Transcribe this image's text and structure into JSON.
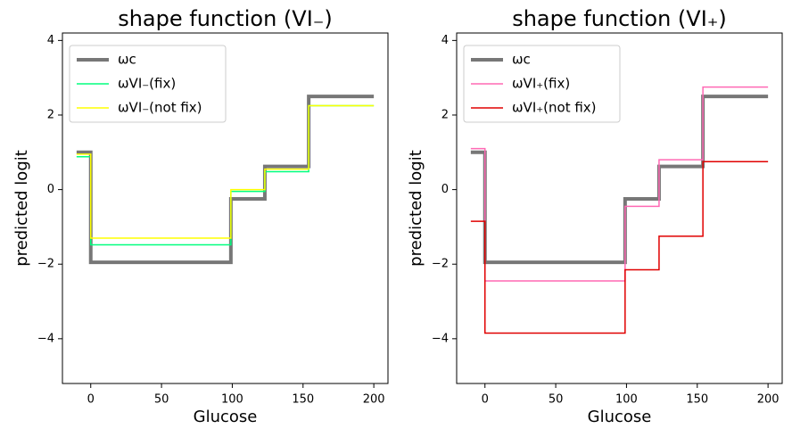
{
  "chart_data": [
    {
      "type": "step",
      "title": "shape function (VI₋)",
      "xlabel": "Glucose",
      "ylabel": "predicted logit",
      "x": [
        -10,
        0,
        99,
        123,
        154,
        200
      ],
      "series": [
        {
          "name": "ωc",
          "color": "#777777",
          "width": 4,
          "values": [
            1.0,
            -1.95,
            -0.25,
            0.62,
            2.5,
            2.5
          ]
        },
        {
          "name": "ωVI₋(fix)",
          "color": "#00ff7f",
          "width": 1.5,
          "values": [
            0.88,
            -1.48,
            -0.05,
            0.48,
            2.25,
            2.25
          ]
        },
        {
          "name": "ωVI₋(not fix)",
          "color": "#ffff00",
          "width": 1.5,
          "values": [
            0.95,
            -1.3,
            0.0,
            0.55,
            2.25,
            2.25
          ]
        }
      ],
      "xlim": [
        -20,
        210
      ],
      "xticks": [
        0,
        50,
        100,
        150,
        200
      ],
      "ylim": [
        -5.2,
        4.2
      ],
      "yticks": [
        {
          "value": -4,
          "label": "−4"
        },
        {
          "value": -2,
          "label": "−2"
        },
        0,
        2,
        4
      ],
      "legend": "upper left"
    },
    {
      "type": "step",
      "title": "shape function (VI₊)",
      "xlabel": "Glucose",
      "ylabel": "predicted logit",
      "x": [
        -10,
        0,
        99,
        123,
        154,
        200
      ],
      "series": [
        {
          "name": "ωc",
          "color": "#777777",
          "width": 4,
          "values": [
            1.0,
            -1.95,
            -0.25,
            0.62,
            2.5,
            2.5
          ]
        },
        {
          "name": "ωVI₊(fix)",
          "color": "#ff69b4",
          "width": 1.5,
          "values": [
            1.1,
            -2.45,
            -0.45,
            0.8,
            2.75,
            2.75
          ]
        },
        {
          "name": "ωVI₊(not fix)",
          "color": "#e00000",
          "width": 1.5,
          "values": [
            -0.85,
            -3.85,
            -2.15,
            -1.25,
            0.75,
            0.75
          ]
        }
      ],
      "xlim": [
        -20,
        210
      ],
      "xticks": [
        0,
        50,
        100,
        150,
        200
      ],
      "ylim": [
        -5.2,
        4.2
      ],
      "yticks": [
        {
          "value": -4,
          "label": "−4"
        },
        {
          "value": -2,
          "label": "−2"
        },
        0,
        2,
        4
      ],
      "legend": "upper left"
    }
  ]
}
